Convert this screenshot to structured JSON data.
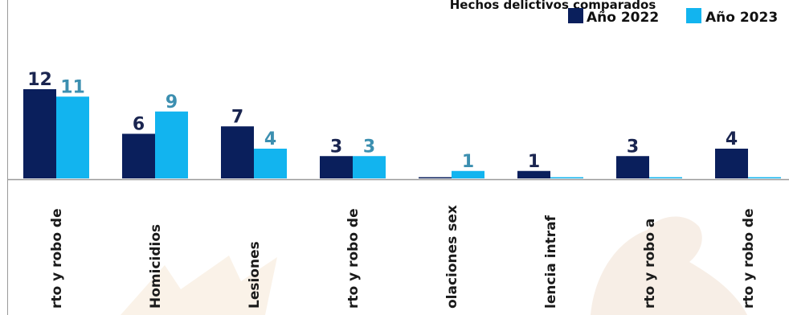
{
  "chart_data": {
    "type": "bar",
    "title": "Hechos delictivos comparados",
    "categories": [
      "rto y robo de",
      "Homicidios",
      "Lesiones",
      "rto y robo de",
      "olaciones sex",
      "lencia intraf",
      "rto y robo a",
      "rto y robo de"
    ],
    "series": [
      {
        "name": "Año 2022",
        "values": [
          12,
          6,
          7,
          3,
          0,
          1,
          3,
          4
        ],
        "color": "#0a1f5c"
      },
      {
        "name": "Año 2023",
        "values": [
          11,
          9,
          4,
          3,
          1,
          0,
          0,
          0
        ],
        "color": "#12b4ef"
      }
    ],
    "ylim": [
      0,
      12
    ],
    "grid": false,
    "legend": "top-right",
    "xlabel": "",
    "ylabel": "",
    "label_colors": {
      "Año 2022": "#1a2550",
      "Año 2023": "#3c8fb0"
    },
    "axis_color": "#9a9a9a"
  }
}
